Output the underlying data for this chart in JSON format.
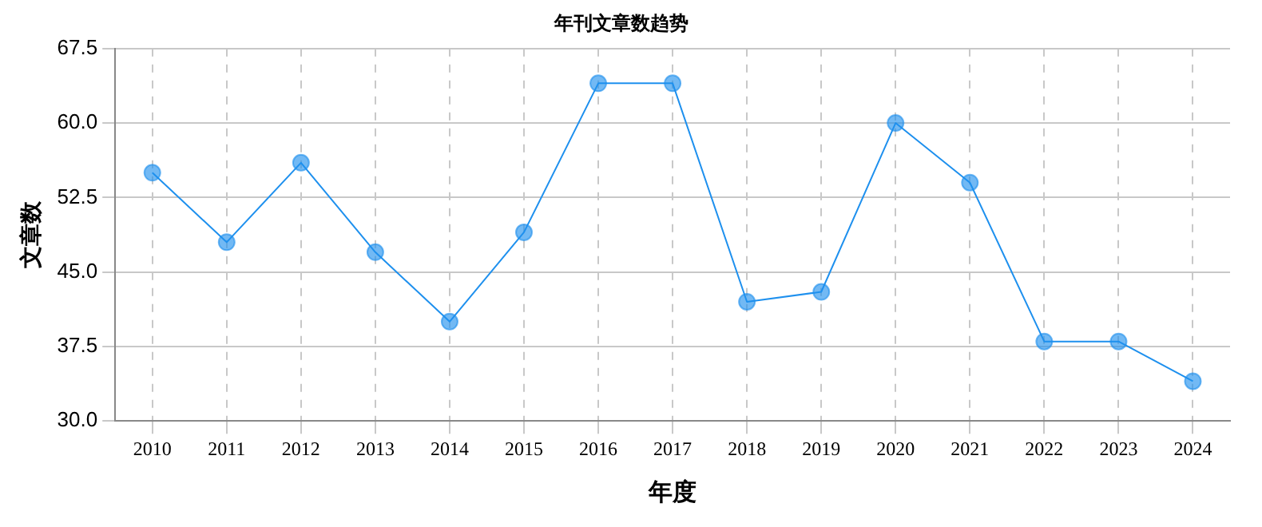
{
  "chart_data": {
    "type": "line",
    "title": "年刊文章数趋势",
    "xlabel": "年度",
    "ylabel": "文章数",
    "categories": [
      "2010",
      "2011",
      "2012",
      "2013",
      "2014",
      "2015",
      "2016",
      "2017",
      "2018",
      "2019",
      "2020",
      "2021",
      "2022",
      "2023",
      "2024"
    ],
    "series": [
      {
        "color": "#1e90ee",
        "values": [
          55,
          48,
          56,
          47,
          40,
          49,
          64,
          64,
          42,
          43,
          60,
          54,
          38,
          38,
          34
        ]
      }
    ],
    "ylim": [
      30,
      67.5
    ],
    "yticks": [
      {
        "value": 30,
        "label": "30.0"
      },
      37.5,
      {
        "value": 45,
        "label": "45.0"
      },
      52.5,
      {
        "value": 60,
        "label": "60.0"
      },
      67.5
    ],
    "grid": true,
    "marker": "circle",
    "line_style": "solid",
    "legend": false
  }
}
